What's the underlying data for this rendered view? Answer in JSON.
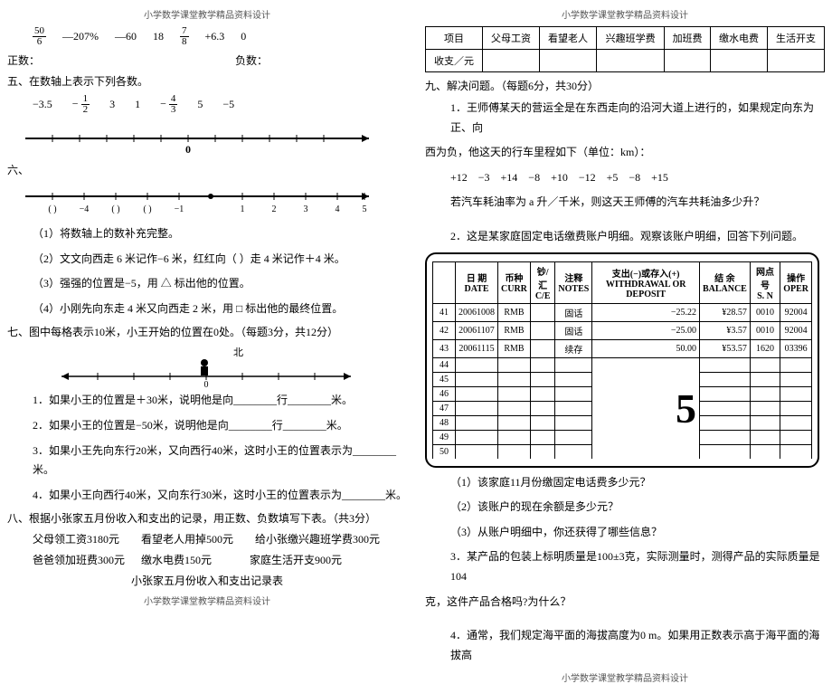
{
  "header": "小学数学课堂教学精品资料设计",
  "footer": "小学数学课堂教学精品资料设计",
  "left": {
    "nums": [
      "50/6",
      "—207%",
      "—60",
      "18",
      "7/8",
      "+6.3",
      "0"
    ],
    "pos_label": "正数：",
    "neg_label": "负数：",
    "sec5_title": "五、在数轴上表示下列各数。",
    "sec5_nums": [
      "−3.5",
      "−1/2",
      "3",
      "1",
      "−4/3",
      "5",
      "−5"
    ],
    "sec6_title": "六、",
    "sec6_ticks": [
      "(  )",
      "−4",
      "(  )",
      "(  )",
      "−1",
      "",
      "1",
      "2",
      "3",
      "4",
      "5"
    ],
    "sec6_q1": "（1）将数轴上的数补充完整。",
    "sec6_q2": "（2）文文向西走 6 米记作−6 米，红红向（    ）走 4 米记作＋4 米。",
    "sec6_q3": "（3）强强的位置是−5，用 △ 标出他的位置。",
    "sec6_q4": "（4）小刚先向东走 4 米又向西走 2 米，用 □ 标出他的最终位置。",
    "sec7_title": "七、图中每格表示10米，小王开始的位置在0处。（每题3分，共12分）",
    "north": "北",
    "sec7_q1": "1．如果小王的位置是＋30米，说明他是向________行________米。",
    "sec7_q2": "2．如果小王的位置是−50米，说明他是向________行________米。",
    "sec7_q3": "3．如果小王先向东行20米，又向西行40米，这时小王的位置表示为________米。",
    "sec7_q4": "4．如果小王向西行40米，又向东行30米，这时小王的位置表示为________米。",
    "sec8_title": "八、根据小张家五月份收入和支出的记录，用正数、负数填写下表。（共3分）",
    "sec8_l1": "父母领工资3180元        看望老人用掉500元        给小张缴兴趣班学费300元",
    "sec8_l2": "爸爸领加班费300元      缴水电费150元              家庭生活开支900元",
    "sec8_cap": "小张家五月份收入和支出记录表"
  },
  "right": {
    "table_headers": [
      "项目",
      "父母工资",
      "看望老人",
      "兴趣班学费",
      "加班费",
      "缴水电费",
      "生活开支"
    ],
    "table_row_label": "收支／元",
    "sec9_title": "九、解决问题。（每题6分，共30分）",
    "q1_a": "1．王师傅某天的营运全是在东西走向的沿河大道上进行的，如果规定向东为正、向",
    "q1_b": "西为负，他这天的行车里程如下（单位：km）：",
    "q1_data": "+12    −3    +14    −8    +10    −12    +5    −8    +15",
    "q1_c": "若汽车耗油率为 a 升／千米，则这天王师傅的汽车共耗油多少升？",
    "q2": "2．这是某家庭固定电话缴费账户明细。观察该账户明细，回答下列问题。",
    "bank_headers": [
      "日 期\nDATE",
      "币种\nCURR",
      "钞/汇\nC/E",
      "注释\nNOTES",
      "支出(-)或存入(+)\nWITHDRAWAL OR DEPOSIT",
      "结 余\nBALANCE",
      "网点号\nS. N",
      "操作\nOPER"
    ],
    "bank_rows": [
      [
        "41",
        "20061008",
        "RMB",
        "",
        "固话",
        "−25.22",
        "¥28.57",
        "0010",
        "92004"
      ],
      [
        "42",
        "20061107",
        "RMB",
        "",
        "固话",
        "−25.00",
        "¥3.57",
        "0010",
        "92004"
      ],
      [
        "43",
        "20061115",
        "RMB",
        "",
        "续存",
        "50.00",
        "¥53.57",
        "1620",
        "03396"
      ],
      [
        "44",
        "",
        "",
        "",
        "",
        "",
        "",
        "",
        ""
      ],
      [
        "45",
        "",
        "",
        "",
        "",
        "",
        "",
        "",
        ""
      ],
      [
        "46",
        "",
        "",
        "",
        "",
        "",
        "",
        "",
        ""
      ],
      [
        "47",
        "",
        "",
        "",
        "",
        "",
        "",
        "",
        ""
      ],
      [
        "48",
        "",
        "",
        "",
        "",
        "",
        "",
        "",
        ""
      ],
      [
        "49",
        "",
        "",
        "",
        "",
        "",
        "",
        "",
        ""
      ],
      [
        "50",
        "",
        "",
        "",
        "",
        "",
        "",
        "",
        ""
      ]
    ],
    "q2_1": "（1）该家庭11月份缴固定电话费多少元？",
    "q2_2": "（2）该账户的现在余额是多少元？",
    "q2_3": "（3）从账户明细中，你还获得了哪些信息？",
    "q3_a": "3．某产品的包装上标明质量是100±3克，实际测量时，测得产品的实际质量是104",
    "q3_b": "克，这件产品合格吗?为什么？",
    "q4": "4．通常，我们规定海平面的海拔高度为0 m。如果用正数表示高于海平面的海拔高"
  }
}
